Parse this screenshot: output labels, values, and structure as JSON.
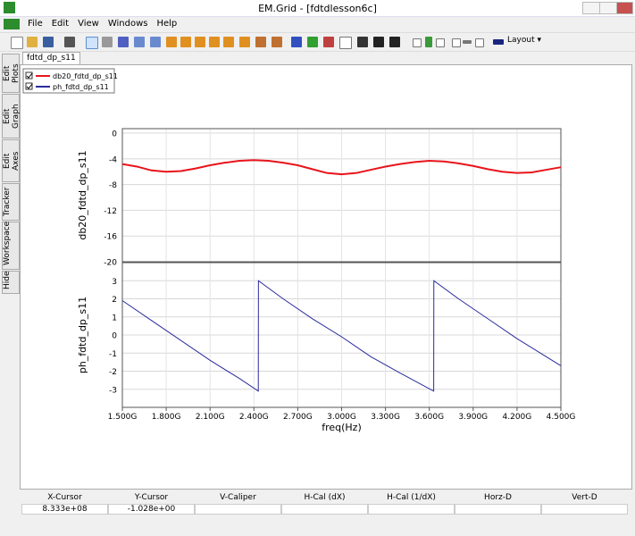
{
  "window": {
    "title": "EM.Grid - [fdtdlesson6c]"
  },
  "menu": [
    "File",
    "Edit",
    "View",
    "Windows",
    "Help"
  ],
  "toolbar": {
    "layout_button": "Layout"
  },
  "side_tabs": [
    "Edit Plots",
    "Edit Graph",
    "Edit Axes",
    "Tracker",
    "Workspace",
    "Hide"
  ],
  "tab": "fdtd_dp_s11",
  "chart_data": [
    {
      "type": "line",
      "ylabel": "db20_fdtd_dp_s11",
      "legend": "upper left",
      "grid": true,
      "xlim": [
        1500000000,
        4500000000
      ],
      "xticks": [
        1500000000,
        1800000000,
        2100000000,
        2400000000,
        2700000000,
        3000000000,
        3300000000,
        3600000000,
        3900000000,
        4200000000,
        4500000000
      ],
      "ylim": [
        -20,
        0.7
      ],
      "yticks": [
        0,
        -4,
        -8,
        -12,
        -16,
        -20
      ],
      "x": [
        1500000000,
        1600000000,
        1700000000,
        1800000000,
        1900000000,
        2000000000,
        2100000000,
        2200000000,
        2300000000,
        2400000000,
        2500000000,
        2600000000,
        2700000000,
        2800000000,
        2900000000,
        3000000000,
        3100000000,
        3200000000,
        3300000000,
        3400000000,
        3500000000,
        3600000000,
        3700000000,
        3800000000,
        3900000000,
        4000000000,
        4100000000,
        4200000000,
        4300000000,
        4400000000,
        4500000000
      ],
      "series": [
        {
          "name": "db20_fdtd_dp_s11",
          "color": "#e8141b",
          "values": [
            -4.8,
            -5.2,
            -5.8,
            -6.0,
            -5.9,
            -5.5,
            -5.0,
            -4.6,
            -4.3,
            -4.2,
            -4.3,
            -4.6,
            -5.0,
            -5.6,
            -6.2,
            -6.4,
            -6.2,
            -5.7,
            -5.2,
            -4.8,
            -4.5,
            -4.3,
            -4.4,
            -4.7,
            -5.1,
            -5.6,
            -6.0,
            -6.2,
            -6.1,
            -5.7,
            -5.3
          ]
        }
      ]
    },
    {
      "type": "line",
      "ylabel": "ph_fdtd_dp_s11",
      "xlabel": "freq(Hz)",
      "grid": true,
      "xlim": [
        1500000000,
        4500000000
      ],
      "xticks": [
        {
          "value": 1500000000,
          "label": "1.500G"
        },
        {
          "value": 1800000000,
          "label": "1.800G"
        },
        {
          "value": 2100000000,
          "label": "2.100G"
        },
        {
          "value": 2400000000,
          "label": "2.400G"
        },
        {
          "value": 2700000000,
          "label": "2.700G"
        },
        {
          "value": 3000000000,
          "label": "3.000G"
        },
        {
          "value": 3300000000,
          "label": "3.300G"
        },
        {
          "value": 3600000000,
          "label": "3.600G"
        },
        {
          "value": 3900000000,
          "label": "3.900G"
        },
        {
          "value": 4200000000,
          "label": "4.200G"
        },
        {
          "value": 4500000000,
          "label": "4.500G"
        }
      ],
      "ylim": [
        -4,
        4
      ],
      "yticks": [
        3,
        2,
        1,
        0,
        -1,
        -2,
        -3
      ],
      "x": [
        1500000000,
        1700000000,
        1900000000,
        2100000000,
        2300000000,
        2430000000,
        2431000000,
        2600000000,
        2800000000,
        3000000000,
        3200000000,
        3400000000,
        3630000000,
        3631000000,
        3800000000,
        4000000000,
        4200000000,
        4400000000,
        4500000000
      ],
      "series": [
        {
          "name": "ph_fdtd_dp_s11",
          "color": "#2b2b9e",
          "values": [
            1.9,
            0.8,
            -0.3,
            -1.4,
            -2.4,
            -3.1,
            3.0,
            2.0,
            0.9,
            -0.1,
            -1.2,
            -2.1,
            -3.1,
            3.0,
            2.0,
            0.9,
            -0.2,
            -1.2,
            -1.7
          ]
        }
      ]
    }
  ],
  "status_bar": {
    "headers": [
      "X-Cursor",
      "Y-Cursor",
      "V-Caliper",
      "H-Cal (dX)",
      "H-Cal (1/dX)",
      "Horz-D",
      "Vert-D"
    ],
    "values": [
      "8.333e+08",
      "-1.028e+00"
    ]
  }
}
